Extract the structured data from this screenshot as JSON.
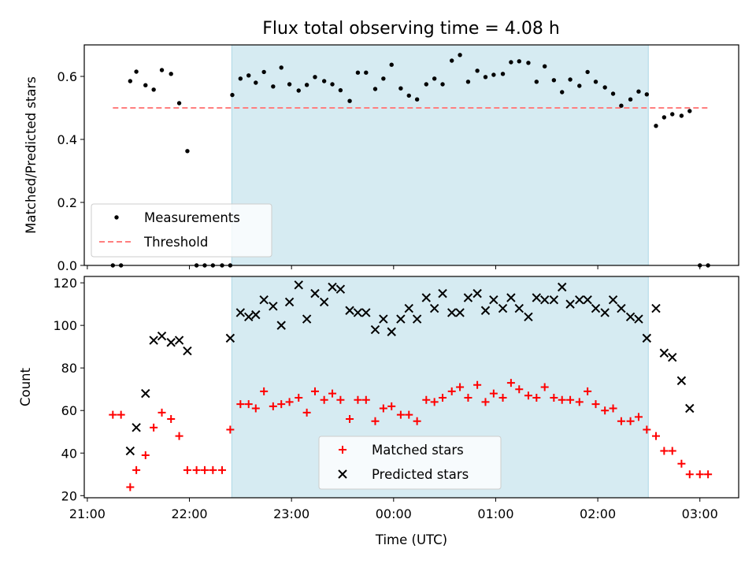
{
  "chart_data": [
    {
      "type": "scatter",
      "title": "Flux total observing time = 4.08 h",
      "xlabel": "",
      "ylabel": "Matched/Predicted stars",
      "ylim": [
        0,
        0.7
      ],
      "yticks": [
        "0.0",
        "0.2",
        "0.4",
        "0.6"
      ],
      "ytick_values": [
        0,
        0.2,
        0.4,
        0.6
      ],
      "x_unit": "hours from 21:00 UTC",
      "xlim": [
        -0.03,
        6.38
      ],
      "shaded_region": {
        "x_start": 1.415,
        "x_end": 5.495,
        "color": "#add8e6"
      },
      "legend": {
        "placement": "lower left",
        "entries": [
          "Measurements",
          "Threshold"
        ]
      },
      "threshold": {
        "name": "Threshold",
        "value": 0.5,
        "x_start": 0.25,
        "x_end": 6.1,
        "color": "#ff7f7f"
      },
      "series": [
        {
          "name": "Measurements",
          "color": "#000000",
          "x": [
            0.25,
            0.33,
            0.42,
            0.48,
            0.57,
            0.65,
            0.73,
            0.82,
            0.9,
            0.98,
            1.07,
            1.15,
            1.23,
            1.32,
            1.4,
            1.42,
            1.5,
            1.58,
            1.65,
            1.73,
            1.82,
            1.9,
            1.98,
            2.07,
            2.15,
            2.23,
            2.32,
            2.4,
            2.48,
            2.57,
            2.65,
            2.73,
            2.82,
            2.9,
            2.98,
            3.07,
            3.15,
            3.23,
            3.32,
            3.4,
            3.48,
            3.57,
            3.65,
            3.73,
            3.82,
            3.9,
            3.98,
            4.07,
            4.15,
            4.23,
            4.32,
            4.4,
            4.48,
            4.57,
            4.65,
            4.73,
            4.82,
            4.9,
            4.98,
            5.07,
            5.15,
            5.23,
            5.32,
            5.4,
            5.48,
            5.57,
            5.65,
            5.73,
            5.82,
            5.9,
            6.0,
            6.08
          ],
          "y": [
            0,
            0,
            0.585,
            0.615,
            0.572,
            0.558,
            0.62,
            0.608,
            0.515,
            0.363,
            0,
            0,
            0,
            0,
            0,
            0.541,
            0.593,
            0.603,
            0.58,
            0.614,
            0.568,
            0.628,
            0.575,
            0.555,
            0.573,
            0.598,
            0.585,
            0.575,
            0.556,
            0.522,
            0.612,
            0.612,
            0.56,
            0.593,
            0.637,
            0.562,
            0.539,
            0.527,
            0.575,
            0.593,
            0.575,
            0.65,
            0.668,
            0.583,
            0.618,
            0.598,
            0.605,
            0.608,
            0.645,
            0.648,
            0.643,
            0.583,
            0.632,
            0.588,
            0.55,
            0.59,
            0.57,
            0.614,
            0.583,
            0.565,
            0.545,
            0.507,
            0.527,
            0.552,
            0.543,
            0.443,
            0.47,
            0.48,
            0.475,
            0.49,
            0,
            0
          ]
        }
      ]
    },
    {
      "type": "scatter",
      "title": "",
      "xlabel": "Time (UTC)",
      "ylabel": "Count",
      "ylim": [
        19,
        123
      ],
      "yticks": [
        "20",
        "40",
        "60",
        "80",
        "100",
        "120"
      ],
      "ytick_values": [
        20,
        40,
        60,
        80,
        100,
        120
      ],
      "x_unit": "hours from 21:00 UTC",
      "xlim": [
        -0.03,
        6.38
      ],
      "xticks": [
        "21:00",
        "22:00",
        "23:00",
        "00:00",
        "01:00",
        "02:00",
        "03:00"
      ],
      "xtick_values": [
        0,
        1,
        2,
        3,
        4,
        5,
        6
      ],
      "shaded_region": {
        "x_start": 1.415,
        "x_end": 5.495,
        "color": "#add8e6"
      },
      "legend": {
        "placement": "lower center",
        "entries": [
          "Matched stars",
          "Predicted stars"
        ]
      },
      "series": [
        {
          "name": "Matched stars",
          "marker": "plus",
          "color": "#ff0000",
          "x": [
            0.25,
            0.33,
            0.42,
            0.48,
            0.57,
            0.65,
            0.73,
            0.82,
            0.9,
            0.98,
            1.07,
            1.15,
            1.23,
            1.32,
            1.4,
            1.5,
            1.58,
            1.65,
            1.73,
            1.82,
            1.9,
            1.98,
            2.07,
            2.15,
            2.23,
            2.32,
            2.4,
            2.48,
            2.57,
            2.65,
            2.73,
            2.82,
            2.9,
            2.98,
            3.07,
            3.15,
            3.23,
            3.32,
            3.4,
            3.48,
            3.57,
            3.65,
            3.73,
            3.82,
            3.9,
            3.98,
            4.07,
            4.15,
            4.23,
            4.32,
            4.4,
            4.48,
            4.57,
            4.65,
            4.73,
            4.82,
            4.9,
            4.98,
            5.07,
            5.15,
            5.23,
            5.32,
            5.4,
            5.48,
            5.57,
            5.65,
            5.73,
            5.82,
            5.9,
            6.0,
            6.08
          ],
          "y": [
            58,
            58,
            24,
            32,
            39,
            52,
            59,
            56,
            48,
            32,
            32,
            32,
            32,
            32,
            51,
            63,
            63,
            61,
            69,
            62,
            63,
            64,
            66,
            59,
            69,
            65,
            68,
            65,
            56,
            65,
            65,
            55,
            61,
            62,
            58,
            58,
            55,
            65,
            64,
            66,
            69,
            71,
            66,
            72,
            64,
            68,
            66,
            73,
            70,
            67,
            66,
            71,
            66,
            65,
            65,
            64,
            69,
            63,
            60,
            61,
            55,
            55,
            57,
            51,
            48,
            41,
            41,
            35,
            30,
            30,
            30
          ]
        },
        {
          "name": "Predicted stars",
          "marker": "x",
          "color": "#000000",
          "x": [
            0.42,
            0.48,
            0.57,
            0.65,
            0.73,
            0.82,
            0.9,
            0.98,
            1.4,
            1.5,
            1.58,
            1.65,
            1.73,
            1.82,
            1.9,
            1.98,
            2.07,
            2.15,
            2.23,
            2.32,
            2.4,
            2.48,
            2.57,
            2.65,
            2.73,
            2.82,
            2.9,
            2.98,
            3.07,
            3.15,
            3.23,
            3.32,
            3.4,
            3.48,
            3.57,
            3.65,
            3.73,
            3.82,
            3.9,
            3.98,
            4.07,
            4.15,
            4.23,
            4.32,
            4.4,
            4.48,
            4.57,
            4.65,
            4.73,
            4.82,
            4.9,
            4.98,
            5.07,
            5.15,
            5.23,
            5.32,
            5.4,
            5.48,
            5.57,
            5.65,
            5.73,
            5.82,
            5.9
          ],
          "y": [
            41,
            52,
            68,
            93,
            95,
            92,
            93,
            88,
            94,
            106,
            104,
            105,
            112,
            109,
            100,
            111,
            119,
            103,
            115,
            111,
            118,
            117,
            107,
            106,
            106,
            98,
            103,
            97,
            103,
            108,
            103,
            113,
            108,
            115,
            106,
            106,
            113,
            115,
            107,
            112,
            108,
            113,
            108,
            104,
            113,
            112,
            112,
            118,
            110,
            112,
            112,
            108,
            106,
            112,
            108,
            104,
            103,
            94,
            108,
            87,
            85,
            74,
            61
          ]
        }
      ]
    }
  ]
}
